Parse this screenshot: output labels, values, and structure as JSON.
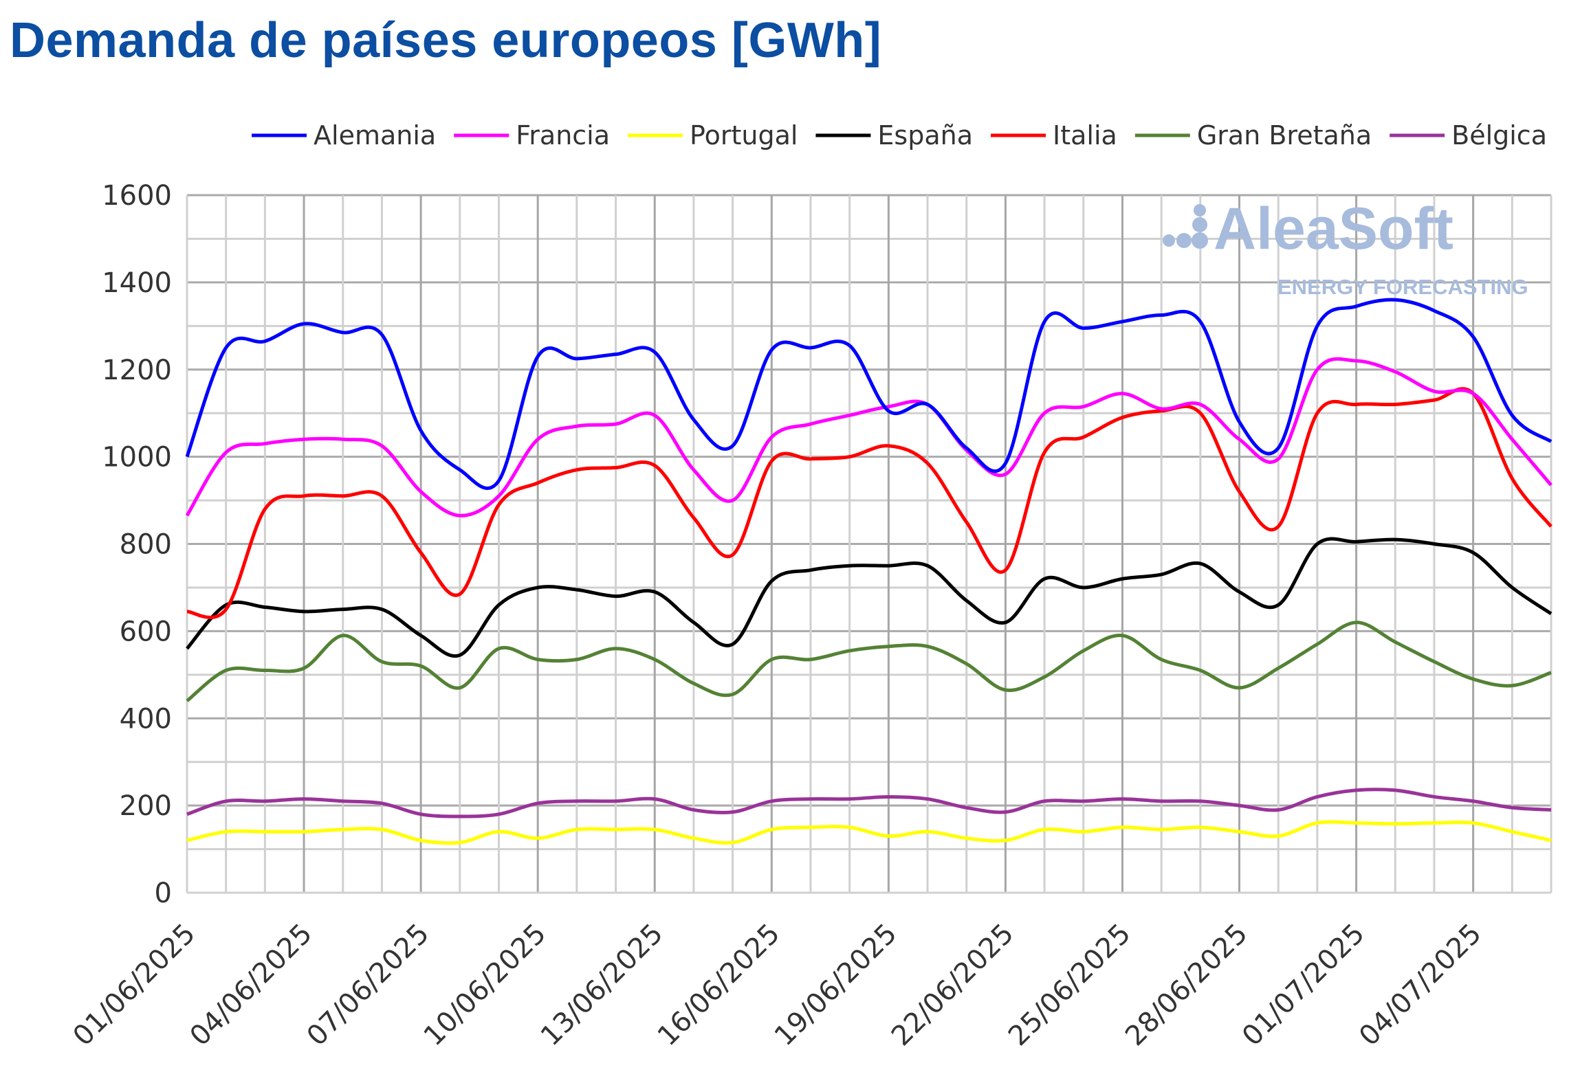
{
  "chart_data": {
    "type": "line",
    "title": "Demanda de países europeos [GWh]",
    "xlabel": "",
    "ylabel": "",
    "ylim": [
      0,
      1600
    ],
    "yticks": [
      0,
      200,
      400,
      600,
      800,
      1000,
      1200,
      1400,
      1600
    ],
    "grid": true,
    "legend_position": "top",
    "x": [
      "01/06/2025",
      "02/06/2025",
      "03/06/2025",
      "04/06/2025",
      "05/06/2025",
      "06/06/2025",
      "07/06/2025",
      "08/06/2025",
      "09/06/2025",
      "10/06/2025",
      "11/06/2025",
      "12/06/2025",
      "13/06/2025",
      "14/06/2025",
      "15/06/2025",
      "16/06/2025",
      "17/06/2025",
      "18/06/2025",
      "19/06/2025",
      "20/06/2025",
      "21/06/2025",
      "22/06/2025",
      "23/06/2025",
      "24/06/2025",
      "25/06/2025",
      "26/06/2025",
      "27/06/2025",
      "28/06/2025",
      "29/06/2025",
      "30/06/2025",
      "01/07/2025",
      "02/07/2025",
      "03/07/2025",
      "04/07/2025",
      "05/07/2025",
      "06/07/2025"
    ],
    "xtick_labels": [
      "01/06/2025",
      "04/06/2025",
      "07/06/2025",
      "10/06/2025",
      "13/06/2025",
      "16/06/2025",
      "19/06/2025",
      "22/06/2025",
      "25/06/2025",
      "28/06/2025",
      "01/07/2025",
      "04/07/2025"
    ],
    "series": [
      {
        "name": "Alemania",
        "color": "#0000ff",
        "values": [
          1000,
          1250,
          1265,
          1305,
          1285,
          1280,
          1060,
          970,
          945,
          1230,
          1225,
          1235,
          1240,
          1085,
          1025,
          1245,
          1250,
          1255,
          1105,
          1120,
          1020,
          985,
          1310,
          1295,
          1310,
          1325,
          1310,
          1080,
          1020,
          1300,
          1345,
          1360,
          1335,
          1275,
          1095,
          1035
        ]
      },
      {
        "name": "Francia",
        "color": "#ff00ff",
        "values": [
          865,
          1010,
          1030,
          1040,
          1040,
          1025,
          920,
          865,
          910,
          1040,
          1070,
          1075,
          1095,
          970,
          900,
          1045,
          1075,
          1095,
          1115,
          1120,
          1015,
          960,
          1100,
          1115,
          1145,
          1110,
          1120,
          1040,
          995,
          1200,
          1220,
          1195,
          1150,
          1145,
          1040,
          935
        ]
      },
      {
        "name": "Portugal",
        "color": "#ffff00",
        "values": [
          120,
          140,
          140,
          140,
          145,
          145,
          120,
          115,
          140,
          125,
          145,
          145,
          145,
          125,
          115,
          145,
          150,
          150,
          130,
          140,
          125,
          120,
          145,
          140,
          150,
          145,
          150,
          140,
          130,
          160,
          160,
          158,
          160,
          160,
          140,
          120
        ]
      },
      {
        "name": "España",
        "color": "#000000",
        "values": [
          560,
          660,
          655,
          645,
          650,
          650,
          590,
          545,
          660,
          700,
          695,
          680,
          690,
          620,
          570,
          715,
          740,
          750,
          750,
          750,
          670,
          620,
          720,
          700,
          720,
          730,
          755,
          690,
          660,
          800,
          805,
          810,
          800,
          780,
          700,
          640
        ]
      },
      {
        "name": "Italia",
        "color": "#ff0000",
        "values": [
          645,
          650,
          880,
          910,
          910,
          910,
          780,
          685,
          890,
          940,
          970,
          975,
          980,
          860,
          775,
          990,
          995,
          1000,
          1025,
          985,
          850,
          740,
          1010,
          1045,
          1090,
          1105,
          1100,
          920,
          840,
          1100,
          1120,
          1120,
          1130,
          1145,
          950,
          840
        ]
      },
      {
        "name": "Gran Bretaña",
        "color": "#548235",
        "values": [
          440,
          510,
          510,
          515,
          590,
          530,
          520,
          470,
          560,
          535,
          535,
          560,
          535,
          480,
          455,
          535,
          535,
          555,
          565,
          565,
          525,
          465,
          495,
          555,
          590,
          535,
          510,
          470,
          515,
          570,
          620,
          575,
          530,
          490,
          475,
          505
        ]
      },
      {
        "name": "Bélgica",
        "color": "#993399",
        "values": [
          180,
          210,
          210,
          215,
          210,
          205,
          180,
          175,
          180,
          205,
          210,
          210,
          215,
          190,
          185,
          210,
          215,
          215,
          220,
          215,
          195,
          185,
          210,
          210,
          215,
          210,
          210,
          200,
          190,
          220,
          235,
          235,
          220,
          210,
          195,
          190
        ]
      }
    ]
  },
  "watermark": {
    "name": "AleaSoft",
    "tagline": "ENERGY FORECASTING",
    "color": "#a7bbdc"
  }
}
